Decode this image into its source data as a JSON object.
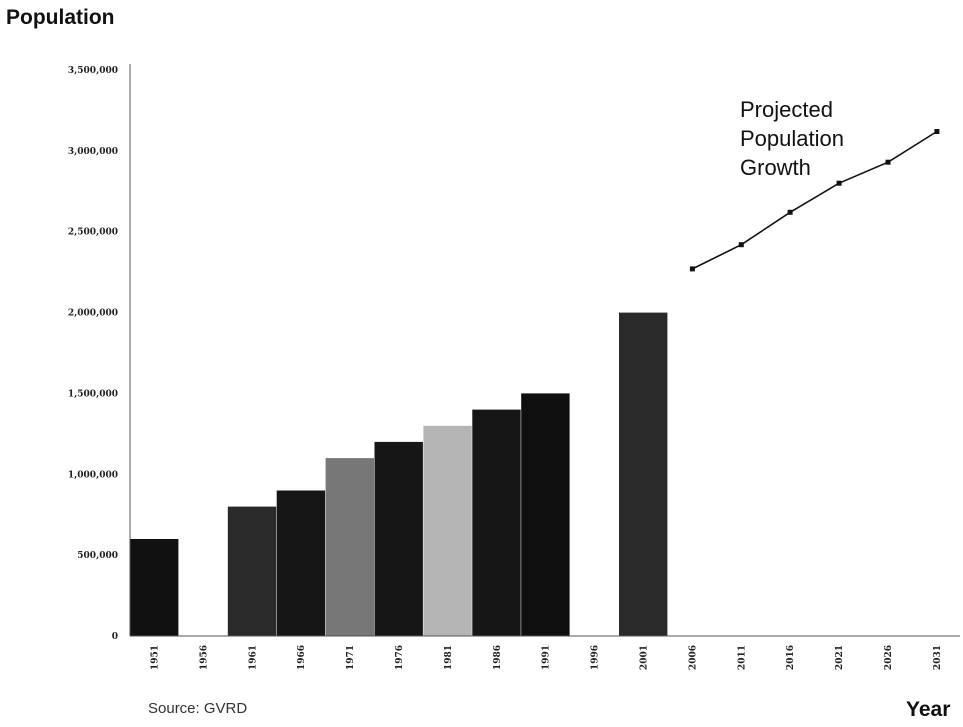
{
  "chart_data": {
    "type": "bar",
    "ylabel": "Population",
    "xlabel": "Year",
    "source": "Source: GVRD",
    "ylim": [
      0,
      3500000
    ],
    "yticks": [
      "0",
      "500,000",
      "1,000,000",
      "1,500,000",
      "2,000,000",
      "2,500,000",
      "3,000,000",
      "3,500,000"
    ],
    "ytick_values": [
      0,
      500000,
      1000000,
      1500000,
      2000000,
      2500000,
      3000000,
      3500000
    ],
    "categories": [
      "1951",
      "1956",
      "1961",
      "1966",
      "1971",
      "1976",
      "1981",
      "1986",
      "1991",
      "1996",
      "2001",
      "2006",
      "2011",
      "2016",
      "2021",
      "2026",
      "2031"
    ],
    "series": [
      {
        "type": "bar",
        "values": [
          600000,
          null,
          800000,
          900000,
          1100000,
          1200000,
          1300000,
          1400000,
          1500000,
          null,
          2000000,
          null,
          null,
          null,
          null,
          null,
          null
        ],
        "colors": [
          "#111111",
          null,
          "#2a2a2a",
          "#161616",
          "#777777",
          "#161616",
          "#b5b5b5",
          "#161616",
          "#0f0f0f",
          null,
          "#2a2a2a",
          null,
          null,
          null,
          null,
          null,
          null
        ]
      },
      {
        "type": "line",
        "values": [
          null,
          null,
          null,
          null,
          null,
          null,
          null,
          null,
          null,
          null,
          null,
          2270000,
          2420000,
          2620000,
          2800000,
          2930000,
          3120000
        ]
      }
    ],
    "annotation": [
      "Projected",
      "Population",
      "Growth"
    ],
    "grid": false
  }
}
